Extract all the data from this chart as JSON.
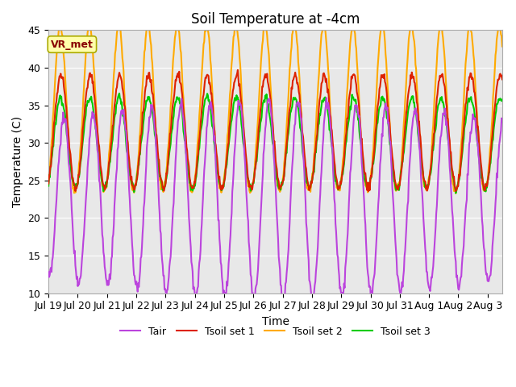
{
  "title": "Soil Temperature at -4cm",
  "xlabel": "Time",
  "ylabel": "Temperature (C)",
  "ylim": [
    10,
    45
  ],
  "n_days": 15.5,
  "xtick_labels": [
    "Jul 19",
    "Jul 20",
    "Jul 21",
    "Jul 22",
    "Jul 23",
    "Jul 24",
    "Jul 25",
    "Jul 26",
    "Jul 27",
    "Jul 28",
    "Jul 29",
    "Jul 30",
    "Jul 31",
    "Aug 1",
    "Aug 2",
    "Aug 3"
  ],
  "colors": {
    "Tair": "#bb44dd",
    "Tsoil1": "#dd2200",
    "Tsoil2": "#ffaa00",
    "Tsoil3": "#00cc00"
  },
  "legend_labels": [
    "Tair",
    "Tsoil set 1",
    "Tsoil set 2",
    "Tsoil set 3"
  ],
  "annotation_text": "VR_met",
  "annotation_color": "#880000",
  "annotation_bg": "#ffffaa",
  "annotation_edge": "#aaaa00",
  "background_color": "#e8e8e8",
  "title_fontsize": 12,
  "axis_fontsize": 10,
  "tick_fontsize": 9,
  "grid_color": "#ffffff",
  "linewidth": 1.5
}
